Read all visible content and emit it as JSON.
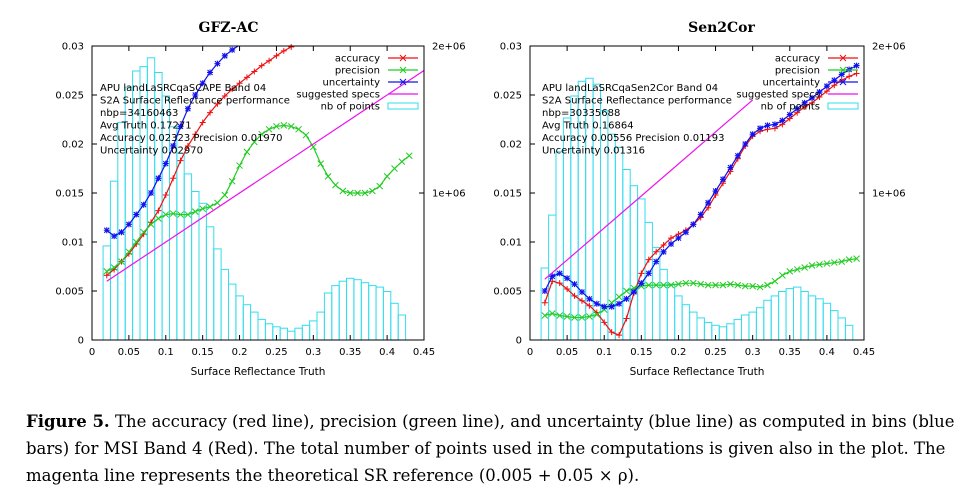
{
  "chart_data": [
    {
      "type": "line",
      "title": "GFZ-AC",
      "xlabel": "Surface Reflectance Truth",
      "ylabel": "",
      "xlim": [
        0,
        0.45
      ],
      "ylim": [
        0,
        0.03
      ],
      "y2lim": [
        0,
        2000000
      ],
      "x_ticks": [
        "0",
        "0.05",
        "0.1",
        "0.15",
        "0.2",
        "0.25",
        "0.3",
        "0.35",
        "0.4",
        "0.45"
      ],
      "y_ticks": [
        "0",
        "0.005",
        "0.01",
        "0.015",
        "0.02",
        "0.025",
        "0.03"
      ],
      "y2_ticks": [
        "1e+06",
        "2e+06"
      ],
      "grid": false,
      "legend_position": "top-right",
      "info_lines": [
        "APU landLaSRCqaSCAPE Band 04",
        "S2A Surface Reflectance performance",
        "nbp=34160463",
        "Avg Truth 0.17271",
        "Accuracy 0.02323 Precision 0.01970",
        "Uncertainty 0.02970"
      ],
      "histogram": {
        "name": "nb of points",
        "x": [
          0.02,
          0.03,
          0.04,
          0.05,
          0.06,
          0.07,
          0.08,
          0.09,
          0.1,
          0.11,
          0.12,
          0.13,
          0.14,
          0.15,
          0.16,
          0.17,
          0.18,
          0.19,
          0.2,
          0.21,
          0.22,
          0.23,
          0.24,
          0.25,
          0.26,
          0.27,
          0.28,
          0.29,
          0.3,
          0.31,
          0.32,
          0.33,
          0.34,
          0.35,
          0.36,
          0.37,
          0.38,
          0.39,
          0.4,
          0.41,
          0.42
        ],
        "values": [
          640000,
          1080000,
          1480000,
          1720000,
          1830000,
          1860000,
          1920000,
          1820000,
          1660000,
          1450000,
          1270000,
          1130000,
          1010000,
          930000,
          770000,
          620000,
          480000,
          380000,
          300000,
          240000,
          190000,
          140000,
          110000,
          90000,
          80000,
          60000,
          80000,
          100000,
          130000,
          190000,
          320000,
          370000,
          400000,
          420000,
          410000,
          390000,
          370000,
          360000,
          330000,
          250000,
          170000
        ]
      },
      "series": [
        {
          "name": "accuracy",
          "x": [
            0.02,
            0.03,
            0.04,
            0.05,
            0.06,
            0.07,
            0.08,
            0.09,
            0.1,
            0.11,
            0.12,
            0.13,
            0.14,
            0.15,
            0.16,
            0.17,
            0.18,
            0.19,
            0.2,
            0.21,
            0.22,
            0.23,
            0.24,
            0.25,
            0.26,
            0.27,
            0.28
          ],
          "values": [
            0.0066,
            0.0072,
            0.008,
            0.0088,
            0.0098,
            0.0108,
            0.012,
            0.0132,
            0.0148,
            0.0165,
            0.0183,
            0.0198,
            0.021,
            0.0222,
            0.0232,
            0.0241,
            0.0249,
            0.0256,
            0.0262,
            0.0268,
            0.0274,
            0.028,
            0.0285,
            0.029,
            0.0295,
            0.0299,
            0.0303
          ]
        },
        {
          "name": "precision",
          "x": [
            0.02,
            0.03,
            0.04,
            0.05,
            0.06,
            0.07,
            0.08,
            0.09,
            0.1,
            0.11,
            0.12,
            0.13,
            0.14,
            0.15,
            0.16,
            0.17,
            0.18,
            0.19,
            0.2,
            0.21,
            0.22,
            0.23,
            0.24,
            0.25,
            0.26,
            0.27,
            0.28,
            0.29,
            0.3,
            0.31,
            0.32,
            0.33,
            0.34,
            0.35,
            0.36,
            0.37,
            0.38,
            0.39,
            0.4,
            0.41,
            0.42,
            0.43
          ],
          "values": [
            0.007,
            0.0074,
            0.008,
            0.009,
            0.01,
            0.011,
            0.0118,
            0.0124,
            0.0128,
            0.0129,
            0.0128,
            0.0128,
            0.0131,
            0.0134,
            0.0136,
            0.014,
            0.0148,
            0.0162,
            0.0178,
            0.0192,
            0.0202,
            0.021,
            0.0215,
            0.0218,
            0.0219,
            0.0218,
            0.0215,
            0.0209,
            0.0197,
            0.018,
            0.0167,
            0.0158,
            0.0152,
            0.015,
            0.015,
            0.015,
            0.0152,
            0.0157,
            0.0167,
            0.0175,
            0.0182,
            0.0188
          ]
        },
        {
          "name": "uncertainty",
          "x": [
            0.02,
            0.03,
            0.04,
            0.05,
            0.06,
            0.07,
            0.08,
            0.09,
            0.1,
            0.11,
            0.12,
            0.13,
            0.14,
            0.15,
            0.16,
            0.17,
            0.18,
            0.19,
            0.2
          ],
          "values": [
            0.0112,
            0.0106,
            0.011,
            0.0118,
            0.0128,
            0.0138,
            0.015,
            0.0165,
            0.018,
            0.0198,
            0.0218,
            0.0236,
            0.025,
            0.0262,
            0.0273,
            0.0282,
            0.029,
            0.0296,
            0.0301
          ]
        },
        {
          "name": "suggested specs",
          "x": [
            0.02,
            0.45
          ],
          "values": [
            0.006,
            0.0275
          ]
        }
      ]
    },
    {
      "type": "line",
      "title": "Sen2Cor",
      "xlabel": "Surface Reflectance Truth",
      "ylabel": "",
      "xlim": [
        0,
        0.45
      ],
      "ylim": [
        0,
        0.03
      ],
      "y2lim": [
        0,
        2000000
      ],
      "x_ticks": [
        "0",
        "0.05",
        "0.1",
        "0.15",
        "0.2",
        "0.25",
        "0.3",
        "0.35",
        "0.4",
        "0.45"
      ],
      "y_ticks": [
        "0",
        "0.005",
        "0.01",
        "0.015",
        "0.02",
        "0.025",
        "0.03"
      ],
      "y2_ticks": [
        "1e+06",
        "2e+06"
      ],
      "grid": false,
      "legend_position": "top-right",
      "info_lines": [
        "APU landLaSRCqaSen2Cor Band 04",
        "S2A Surface Reflectance performance",
        "nbp=30335688",
        "Avg Truth 0.16864",
        "Accuracy 0.00556 Precision 0.01193",
        "Uncertainty 0.01316"
      ],
      "histogram": {
        "name": "nb of points",
        "x": [
          0.02,
          0.03,
          0.04,
          0.05,
          0.06,
          0.07,
          0.08,
          0.09,
          0.1,
          0.11,
          0.12,
          0.13,
          0.14,
          0.15,
          0.16,
          0.17,
          0.18,
          0.19,
          0.2,
          0.21,
          0.22,
          0.23,
          0.24,
          0.25,
          0.26,
          0.27,
          0.28,
          0.29,
          0.3,
          0.31,
          0.32,
          0.33,
          0.34,
          0.35,
          0.36,
          0.37,
          0.38,
          0.39,
          0.4,
          0.41,
          0.42,
          0.43
        ],
        "values": [
          490000,
          850000,
          1280000,
          1510000,
          1660000,
          1760000,
          1780000,
          1740000,
          1560000,
          1400000,
          1310000,
          1160000,
          1050000,
          960000,
          800000,
          630000,
          480000,
          380000,
          300000,
          240000,
          190000,
          150000,
          120000,
          100000,
          90000,
          110000,
          140000,
          170000,
          190000,
          220000,
          270000,
          300000,
          330000,
          350000,
          360000,
          330000,
          300000,
          280000,
          250000,
          200000,
          150000,
          100000
        ]
      },
      "series": [
        {
          "name": "accuracy",
          "x": [
            0.02,
            0.03,
            0.04,
            0.05,
            0.06,
            0.07,
            0.08,
            0.09,
            0.1,
            0.11,
            0.12,
            0.13,
            0.14,
            0.15,
            0.16,
            0.17,
            0.18,
            0.19,
            0.2,
            0.21,
            0.22,
            0.23,
            0.24,
            0.25,
            0.26,
            0.27,
            0.28,
            0.29,
            0.3,
            0.31,
            0.32,
            0.33,
            0.34,
            0.35,
            0.36,
            0.37,
            0.38,
            0.39,
            0.4,
            0.41,
            0.42,
            0.43,
            0.44
          ],
          "values": [
            0.0038,
            0.006,
            0.0058,
            0.0052,
            0.0045,
            0.004,
            0.0035,
            0.0028,
            0.0018,
            0.0008,
            0.0005,
            0.0022,
            0.0048,
            0.0068,
            0.0082,
            0.009,
            0.0097,
            0.0104,
            0.0108,
            0.0112,
            0.0118,
            0.0125,
            0.0135,
            0.0148,
            0.016,
            0.0172,
            0.0185,
            0.0198,
            0.0208,
            0.0213,
            0.0215,
            0.0216,
            0.022,
            0.0226,
            0.0232,
            0.0238,
            0.0242,
            0.0248,
            0.0254,
            0.026,
            0.0265,
            0.0269,
            0.0272
          ]
        },
        {
          "name": "precision",
          "x": [
            0.02,
            0.03,
            0.04,
            0.05,
            0.06,
            0.07,
            0.08,
            0.09,
            0.1,
            0.11,
            0.12,
            0.13,
            0.14,
            0.15,
            0.16,
            0.17,
            0.18,
            0.19,
            0.2,
            0.21,
            0.22,
            0.23,
            0.24,
            0.25,
            0.26,
            0.27,
            0.28,
            0.29,
            0.3,
            0.31,
            0.32,
            0.33,
            0.34,
            0.35,
            0.36,
            0.37,
            0.38,
            0.39,
            0.4,
            0.41,
            0.42,
            0.43,
            0.44
          ],
          "values": [
            0.0025,
            0.0027,
            0.0025,
            0.0024,
            0.0023,
            0.0023,
            0.0024,
            0.0026,
            0.0031,
            0.0038,
            0.0044,
            0.005,
            0.0053,
            0.0055,
            0.0056,
            0.0056,
            0.0056,
            0.0056,
            0.0057,
            0.0058,
            0.0058,
            0.0057,
            0.0056,
            0.0056,
            0.0056,
            0.0057,
            0.0056,
            0.0055,
            0.0055,
            0.0054,
            0.0056,
            0.006,
            0.0066,
            0.007,
            0.0072,
            0.0074,
            0.0076,
            0.0077,
            0.0078,
            0.0079,
            0.008,
            0.0082,
            0.0083
          ]
        },
        {
          "name": "uncertainty",
          "x": [
            0.02,
            0.03,
            0.04,
            0.05,
            0.06,
            0.07,
            0.08,
            0.09,
            0.1,
            0.11,
            0.12,
            0.13,
            0.14,
            0.15,
            0.16,
            0.17,
            0.18,
            0.19,
            0.2,
            0.21,
            0.22,
            0.23,
            0.24,
            0.25,
            0.26,
            0.27,
            0.28,
            0.29,
            0.3,
            0.31,
            0.32,
            0.33,
            0.34,
            0.35,
            0.36,
            0.37,
            0.38,
            0.39,
            0.4,
            0.41,
            0.42,
            0.43,
            0.44
          ],
          "values": [
            0.005,
            0.0065,
            0.0068,
            0.0063,
            0.0057,
            0.0049,
            0.0042,
            0.0037,
            0.0034,
            0.0034,
            0.0037,
            0.0042,
            0.0049,
            0.0058,
            0.0068,
            0.008,
            0.009,
            0.0098,
            0.0104,
            0.011,
            0.0118,
            0.0128,
            0.014,
            0.0152,
            0.0164,
            0.0176,
            0.0188,
            0.02,
            0.021,
            0.0216,
            0.0219,
            0.022,
            0.0224,
            0.023,
            0.0236,
            0.0242,
            0.0247,
            0.0253,
            0.0259,
            0.0265,
            0.0271,
            0.0276,
            0.028
          ]
        },
        {
          "name": "suggested specs",
          "x": [
            0.02,
            0.3
          ],
          "values": [
            0.0062,
            0.0245
          ]
        }
      ]
    }
  ],
  "colors": {
    "accuracy": "#ee1111",
    "precision": "#22cc22",
    "uncertainty": "#1111ee",
    "suggested_specs": "#ee11ee",
    "histogram": "#33ddee"
  },
  "caption": {
    "label": "Figure 5.",
    "text": "The accuracy (red line), precision (green line), and uncertainty (blue line) as computed in bins (blue bars) for MSI Band 4 (Red). The total number of points used in the computations is given also in the plot. The magenta line represents the theoretical SR reference (0.005 + 0.05 × ρ)."
  }
}
